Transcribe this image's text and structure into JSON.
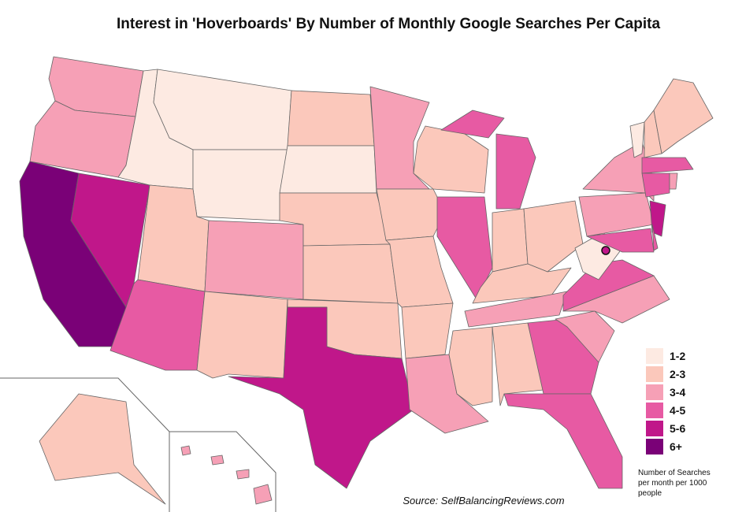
{
  "chart_data": {
    "type": "choropleth",
    "title": "Interest in 'Hoverboards' By Number of Monthly Google Searches Per Capita",
    "legend": [
      {
        "label": "1-2",
        "color": "#fdeae2"
      },
      {
        "label": "2-3",
        "color": "#fbc8bb"
      },
      {
        "label": "3-4",
        "color": "#f6a0b6"
      },
      {
        "label": "4-5",
        "color": "#e75aa3"
      },
      {
        "label": "5-6",
        "color": "#c0178a"
      },
      {
        "label": "6+",
        "color": "#7a0177"
      }
    ],
    "legend_title": "Number of Searches per month per 1000 people",
    "source": "Source: SelfBalancingReviews.com",
    "regions": [
      2,
      2,
      5,
      4,
      0,
      0,
      0,
      1,
      3,
      2,
      1,
      1,
      0,
      1,
      1,
      1,
      4,
      2,
      1,
      1,
      1,
      2,
      1,
      3,
      3,
      1,
      1,
      1,
      2,
      1,
      1,
      3,
      3,
      2,
      2,
      3,
      0,
      2,
      2,
      4,
      3,
      3,
      0,
      1,
      1,
      3,
      3,
      2,
      1,
      2,
      4
    ]
  }
}
